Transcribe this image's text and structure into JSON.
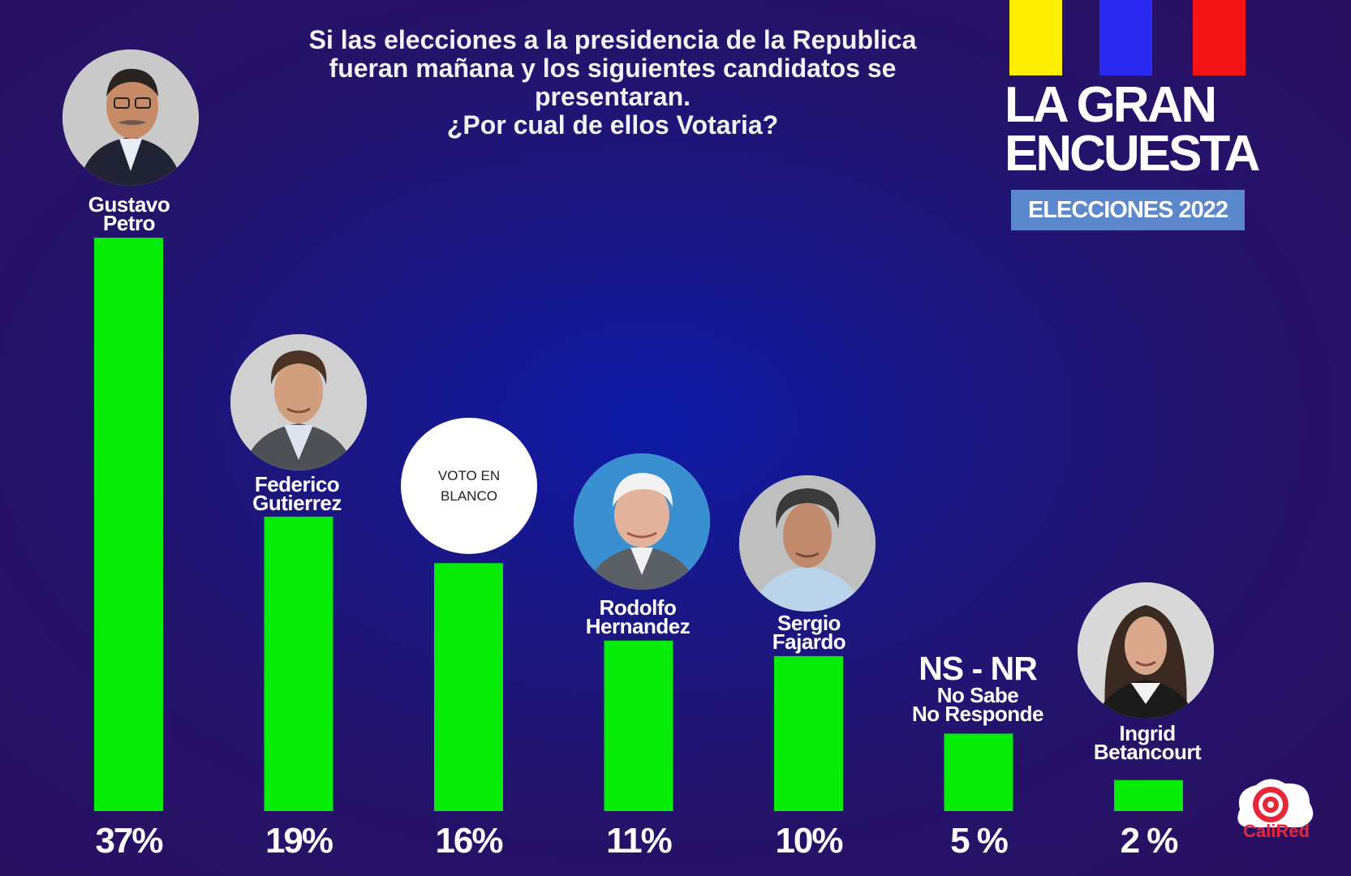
{
  "header": {
    "question_lines": [
      "Si las elecciones a la presidencia de la Republica",
      "fueran mañana y los siguientes candidatos se",
      "presentaran.",
      "¿Por cual de ellos Votaria?"
    ]
  },
  "brand": {
    "title_line1": "LA GRAN",
    "title_line2": "ENCUESTA",
    "badge": "ELECCIONES 2022",
    "logo_text": "CaliRed",
    "flag_colors": [
      "#ffee00",
      "#2a2af2",
      "#f21414"
    ]
  },
  "chart_data": {
    "type": "bar",
    "title": "Si las elecciones a la presidencia de la Republica fueran mañana y los siguientes candidatos se presentaran. ¿Por cual de ellos Votaria?",
    "categories": [
      "Gustavo Petro",
      "Federico Gutierrez",
      "VOTO EN BLANCO",
      "Rodolfo Hernandez",
      "Sergio Fajardo",
      "NS - NR No Sabe No Responde",
      "Ingrid Betancourt"
    ],
    "values": [
      37,
      19,
      16,
      11,
      10,
      5,
      2
    ],
    "value_labels": [
      "37%",
      "19%",
      "16%",
      "11%",
      "10%",
      "5 %",
      "2 %"
    ],
    "unit": "%",
    "bar_color": "#06ec06",
    "xlabel": "",
    "ylabel": "",
    "ylim": [
      0,
      37
    ]
  },
  "candidates": [
    {
      "name_lines": [
        "Gustavo",
        "Petro"
      ],
      "avatar": "person-photo-icon"
    },
    {
      "name_lines": [
        "Federico",
        "Gutierrez"
      ],
      "avatar": "person-photo-icon"
    },
    {
      "blank_lines": [
        "VOTO EN",
        "BLANCO"
      ]
    },
    {
      "name_lines": [
        "Rodolfo",
        "Hernandez"
      ],
      "avatar": "person-photo-icon"
    },
    {
      "name_lines": [
        "Sergio",
        "Fajardo"
      ],
      "avatar": "person-photo-icon"
    },
    {
      "title": "NS - NR",
      "name_lines": [
        "No Sabe",
        "No Responde"
      ]
    },
    {
      "name_lines": [
        "Ingrid",
        "Betancourt"
      ],
      "avatar": "person-photo-icon"
    }
  ]
}
